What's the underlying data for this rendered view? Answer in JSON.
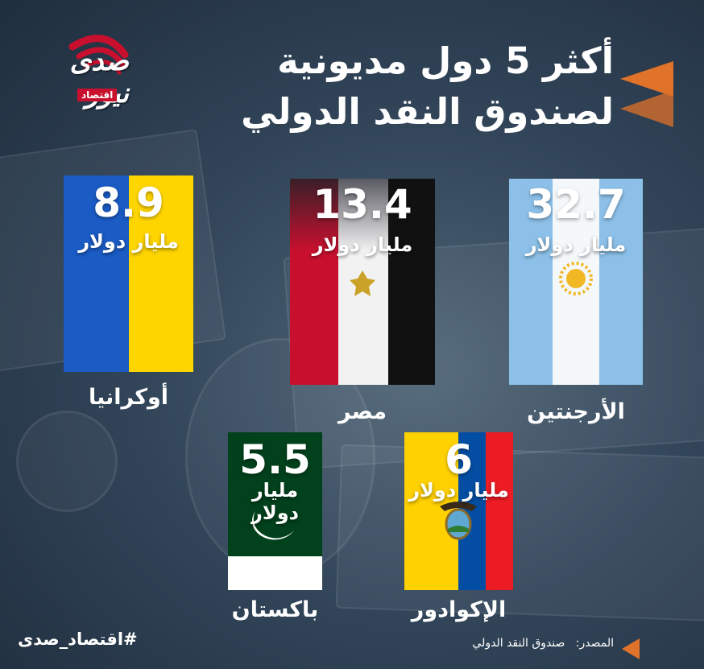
{
  "title": {
    "line1": "أكثر 5 دول مديونية",
    "line2": "لصندوق النقد الدولي"
  },
  "logo": {
    "word": "صدى نيوز",
    "badge": "اقتصاد"
  },
  "footer": {
    "hashtag": "#اقتصاد_صدى",
    "source_label": "المصدر:",
    "source_value": "صندوق النقد الدولي"
  },
  "colors": {
    "accent_orange": "#e0722a",
    "argentina_blue": "#8cc0e8",
    "argentina_sun": "#f2b824",
    "egypt_red": "#c8102e",
    "egypt_black": "#111111",
    "ukraine_blue": "#1a5bc4",
    "ukraine_yellow": "#ffd500",
    "ecuador_yellow": "#ffd100",
    "ecuador_blue": "#034ea2",
    "ecuador_red": "#ed1c24",
    "pakistan_green": "#01411c"
  },
  "chart_data": {
    "type": "table",
    "title": "أكثر 5 دول مديونية لصندوق النقد الدولي",
    "unit": "مليار دولار",
    "categories": [
      "الأرجنتين",
      "مصر",
      "أوكرانيا",
      "الإكوادور",
      "باكستان"
    ],
    "values": [
      "32.7",
      "13.4",
      "8.9",
      "6",
      "5.5"
    ],
    "items": [
      {
        "country": "الأرجنتين",
        "value": "32.7",
        "unit": "مليار دولار",
        "flag_icon": "argentina-flag-icon"
      },
      {
        "country": "مصر",
        "value": "13.4",
        "unit": "مليار دولار",
        "flag_icon": "egypt-flag-icon"
      },
      {
        "country": "أوكرانيا",
        "value": "8.9",
        "unit": "مليار دولار",
        "flag_icon": "ukraine-flag-icon"
      },
      {
        "country": "الإكوادور",
        "value": "6",
        "unit": "مليار دولار",
        "flag_icon": "ecuador-flag-icon"
      },
      {
        "country": "باكستان",
        "value": "5.5",
        "unit": "مليار دولار",
        "flag_icon": "pakistan-flag-icon"
      }
    ]
  }
}
